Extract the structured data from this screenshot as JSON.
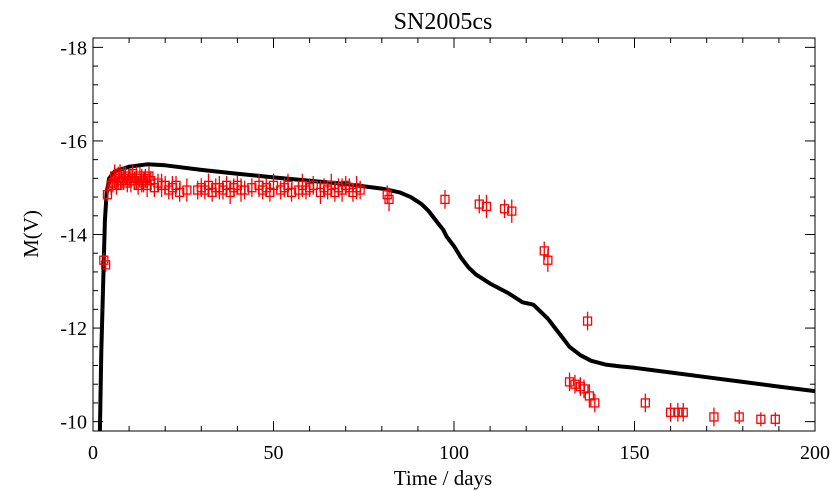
{
  "chart_data": {
    "type": "scatter",
    "title": "SN2005cs",
    "xlabel": "Time / days",
    "ylabel": "M(V)",
    "xlim": [
      0,
      200
    ],
    "ylim": [
      -9.8,
      -18.2
    ],
    "y_inverted": true,
    "grid": false,
    "x_ticks": [
      0,
      50,
      100,
      150,
      200
    ],
    "x_tick_labels": [
      "0",
      "50",
      "100",
      "150",
      "200"
    ],
    "y_ticks": [
      -10,
      -12,
      -14,
      -16,
      -18
    ],
    "y_tick_labels": [
      "-10",
      "-12",
      "-14",
      "-16",
      "-18"
    ],
    "colors": {
      "model": "#000000",
      "observed": "#ff0000"
    },
    "series": [
      {
        "kind": "line",
        "x": [
          1.9,
          2.3,
          2.8,
          3.3,
          3.8,
          4.5,
          6,
          8,
          10,
          15,
          20,
          30,
          40,
          50,
          60,
          70,
          80,
          85,
          88,
          91,
          93,
          95,
          97,
          98,
          100,
          102,
          104,
          106,
          110,
          115,
          119,
          122,
          124,
          126,
          128,
          130,
          132,
          135,
          138,
          142,
          146,
          150,
          160,
          170,
          180,
          190,
          200
        ],
        "y": [
          -9.8,
          -11.5,
          -12.9,
          -14.3,
          -14.9,
          -15.2,
          -15.35,
          -15.4,
          -15.45,
          -15.5,
          -15.48,
          -15.38,
          -15.3,
          -15.22,
          -15.15,
          -15.08,
          -14.98,
          -14.9,
          -14.8,
          -14.65,
          -14.5,
          -14.3,
          -14.1,
          -13.95,
          -13.75,
          -13.5,
          -13.3,
          -13.15,
          -12.95,
          -12.75,
          -12.55,
          -12.5,
          -12.35,
          -12.2,
          -12.0,
          -11.8,
          -11.6,
          -11.42,
          -11.3,
          -11.22,
          -11.18,
          -11.15,
          -11.05,
          -10.95,
          -10.85,
          -10.75,
          -10.65
        ]
      },
      {
        "kind": "points_with_errorbars",
        "x": [
          3,
          3.5,
          4,
          5,
          5.5,
          6,
          6.5,
          7,
          7.5,
          8,
          8.5,
          9,
          9.5,
          10,
          10.5,
          11,
          11.5,
          12,
          12.5,
          13,
          13.5,
          14,
          14.5,
          15,
          15.5,
          16,
          17,
          18,
          19,
          20,
          21,
          22,
          23,
          24,
          26,
          29,
          30,
          31,
          32,
          33,
          34,
          35,
          36,
          37,
          38,
          39,
          40,
          41,
          42,
          44,
          46,
          47,
          48,
          49,
          50,
          52,
          53,
          54,
          55,
          57,
          58,
          59,
          60,
          61,
          63,
          64,
          65,
          66,
          67,
          68,
          69,
          70,
          71,
          72,
          73,
          74,
          81.5,
          82,
          97.5,
          107,
          109,
          114,
          116,
          125,
          126,
          137,
          132,
          133.5,
          135,
          136,
          137.5,
          139,
          153,
          160,
          162,
          163.5,
          172,
          179,
          185,
          189
        ],
        "y": [
          -13.45,
          -13.35,
          -14.85,
          -15.05,
          -15.1,
          -15.25,
          -15.05,
          -15.2,
          -15.3,
          -15.15,
          -15.2,
          -15.25,
          -15.1,
          -15.2,
          -15.15,
          -15.3,
          -15.15,
          -15.2,
          -15.05,
          -15.25,
          -15.15,
          -15.1,
          -15.2,
          -15.05,
          -15.25,
          -15.15,
          -15.0,
          -15.1,
          -15.05,
          -15.05,
          -14.95,
          -15.0,
          -15.05,
          -14.9,
          -14.95,
          -14.95,
          -15.0,
          -14.95,
          -15.05,
          -14.9,
          -15.0,
          -15.0,
          -14.95,
          -15.05,
          -14.9,
          -15.0,
          -15.05,
          -14.95,
          -14.95,
          -15.0,
          -15.05,
          -14.95,
          -15.0,
          -14.9,
          -15.05,
          -14.95,
          -15.0,
          -15.05,
          -14.9,
          -14.95,
          -15.05,
          -14.95,
          -15.0,
          -15.05,
          -14.9,
          -15.0,
          -14.95,
          -15.05,
          -14.9,
          -15.0,
          -14.95,
          -15.05,
          -15.0,
          -14.9,
          -15.0,
          -14.95,
          -14.85,
          -14.75,
          -14.75,
          -14.65,
          -14.6,
          -14.55,
          -14.5,
          -13.65,
          -13.45,
          -12.15,
          -10.85,
          -10.8,
          -10.75,
          -10.7,
          -10.55,
          -10.4,
          -10.4,
          -10.2,
          -10.2,
          -10.2,
          -10.1,
          -10.1,
          -10.05,
          -10.05
        ],
        "yerr": [
          0.15,
          0.15,
          0.15,
          0.2,
          0.2,
          0.25,
          0.2,
          0.25,
          0.2,
          0.2,
          0.25,
          0.2,
          0.2,
          0.2,
          0.25,
          0.2,
          0.2,
          0.25,
          0.2,
          0.2,
          0.25,
          0.2,
          0.2,
          0.25,
          0.2,
          0.2,
          0.2,
          0.2,
          0.25,
          0.2,
          0.2,
          0.25,
          0.2,
          0.2,
          0.25,
          0.2,
          0.2,
          0.2,
          0.25,
          0.2,
          0.2,
          0.25,
          0.2,
          0.2,
          0.25,
          0.2,
          0.2,
          0.25,
          0.2,
          0.2,
          0.25,
          0.2,
          0.2,
          0.2,
          0.25,
          0.2,
          0.2,
          0.25,
          0.2,
          0.2,
          0.25,
          0.2,
          0.2,
          0.2,
          0.25,
          0.2,
          0.2,
          0.25,
          0.2,
          0.2,
          0.25,
          0.2,
          0.2,
          0.2,
          0.25,
          0.2,
          0.2,
          0.25,
          0.2,
          0.2,
          0.25,
          0.2,
          0.25,
          0.2,
          0.25,
          0.2,
          0.2,
          0.2,
          0.2,
          0.2,
          0.25,
          0.2,
          0.2,
          0.2,
          0.2,
          0.2,
          0.2,
          0.15,
          0.15,
          0.15
        ]
      }
    ]
  }
}
